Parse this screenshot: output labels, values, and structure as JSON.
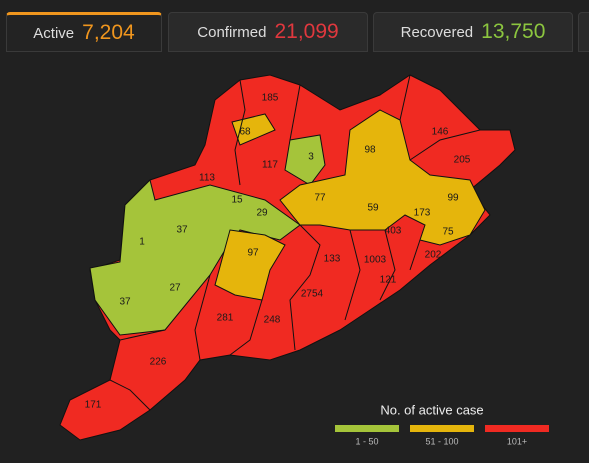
{
  "tabs": [
    {
      "label": "Active",
      "value": "7,204",
      "color": "#f0961e"
    },
    {
      "label": "Confirmed",
      "value": "21,099",
      "color": "#e0383e"
    },
    {
      "label": "Recovered",
      "value": "13,750",
      "color": "#8cc63f"
    }
  ],
  "districts": [
    "185",
    "68",
    "117",
    "3",
    "98",
    "146",
    "205",
    "113",
    "15",
    "29",
    "77",
    "59",
    "99",
    "173",
    "403",
    "75",
    "1",
    "37",
    "97",
    "133",
    "1003",
    "202",
    "121",
    "37",
    "27",
    "2754",
    "281",
    "248",
    "226",
    "171"
  ],
  "legend": {
    "title": "No. of active case",
    "items": [
      {
        "label": "1 - 50",
        "color": "#a5c43a"
      },
      {
        "label": "51 - 100",
        "color": "#e5b50c"
      },
      {
        "label": "101+",
        "color": "#f02a22"
      }
    ]
  }
}
